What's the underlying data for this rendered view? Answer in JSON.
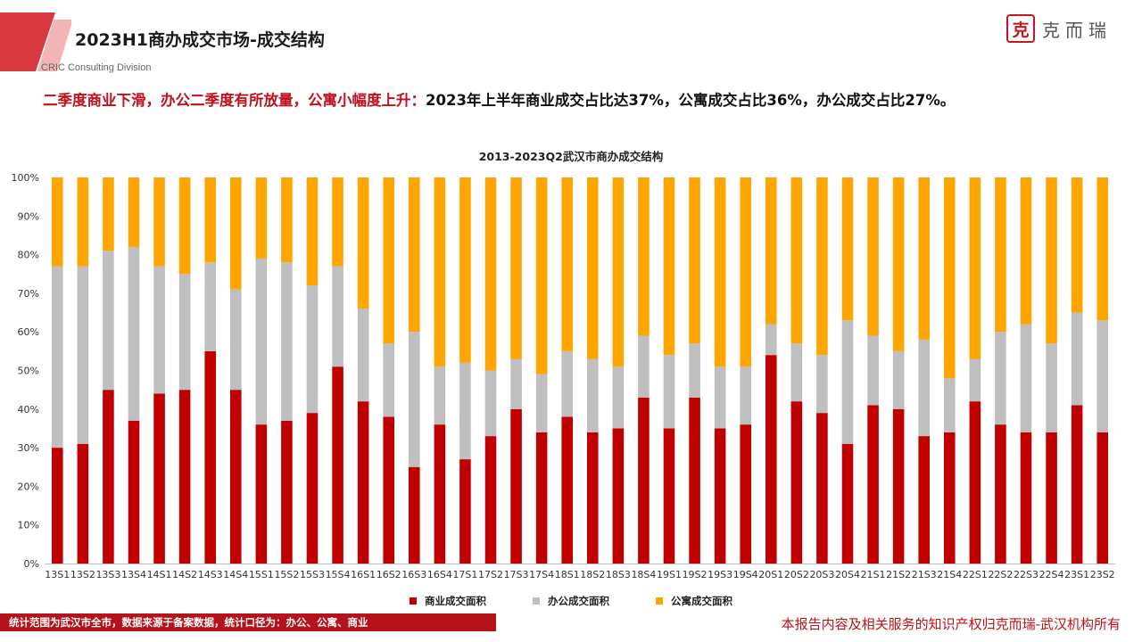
{
  "header": {
    "title": "2023H1商办成交市场-成交结构",
    "division": "CRIC Consulting Division",
    "logo_text": "克而瑞",
    "accent_color": "#c8161d"
  },
  "subtitle": {
    "lead": "二季度商业下滑，办公二季度有所放量，公寓小幅度上升：",
    "rest": "2023年上半年商业成交占比达37%，公寓成交占比36%，办公成交占比27%。"
  },
  "chart_data": {
    "type": "bar",
    "stacked": "percent",
    "title": "2013-2023Q2武汉市商办成交结构",
    "xlabel": "",
    "ylabel": "",
    "ylim": [
      0,
      100
    ],
    "y_ticks": [
      "0%",
      "10%",
      "20%",
      "30%",
      "40%",
      "50%",
      "60%",
      "70%",
      "80%",
      "90%",
      "100%"
    ],
    "grid": false,
    "legend_position": "bottom",
    "categories": [
      "13S1",
      "13S2",
      "13S3",
      "13S4",
      "14S1",
      "14S2",
      "14S3",
      "14S4",
      "15S1",
      "15S2",
      "15S3",
      "15S4",
      "16S1",
      "16S2",
      "16S3",
      "16S4",
      "17S1",
      "17S2",
      "17S3",
      "17S4",
      "18S1",
      "18S2",
      "18S3",
      "18S4",
      "19S1",
      "19S2",
      "19S3",
      "19S4",
      "20S1",
      "20S2",
      "20S3",
      "20S4",
      "21S1",
      "21S2",
      "21S3",
      "21S4",
      "22S1",
      "22S2",
      "22S3",
      "22S4",
      "23S1",
      "23S2"
    ],
    "series": [
      {
        "name": "商业成交面积",
        "color": "#c00000",
        "values": [
          30,
          31,
          45,
          37,
          44,
          45,
          55,
          45,
          36,
          37,
          39,
          51,
          42,
          38,
          25,
          36,
          27,
          33,
          40,
          34,
          38,
          34,
          35,
          43,
          35,
          43,
          35,
          36,
          54,
          42,
          39,
          31,
          41,
          40,
          33,
          34,
          42,
          36,
          34,
          34,
          41,
          34
        ]
      },
      {
        "name": "办公成交面积",
        "color": "#bfbfbf",
        "values": [
          47,
          46,
          36,
          45,
          33,
          30,
          23,
          26,
          43,
          41,
          33,
          26,
          24,
          19,
          35,
          15,
          25,
          17,
          13,
          15,
          17,
          19,
          16,
          16,
          19,
          14,
          16,
          15,
          8,
          15,
          15,
          32,
          18,
          15,
          25,
          14,
          11,
          24,
          28,
          23,
          24,
          29
        ]
      },
      {
        "name": "公寓成交面积",
        "color": "#ffa500",
        "values": [
          23,
          23,
          19,
          18,
          23,
          25,
          22,
          29,
          21,
          22,
          28,
          23,
          34,
          43,
          40,
          49,
          48,
          50,
          47,
          51,
          45,
          47,
          49,
          41,
          46,
          43,
          49,
          49,
          38,
          43,
          46,
          37,
          41,
          45,
          42,
          52,
          47,
          40,
          38,
          43,
          35,
          37
        ]
      }
    ]
  },
  "footer": {
    "scope_note": "统计范围为武汉市全市，数据来源于备案数据，统计口径为：办公、公寓、商业",
    "copyright": "本报告内容及相关服务的知识产权归克而瑞-武汉机构所有"
  }
}
